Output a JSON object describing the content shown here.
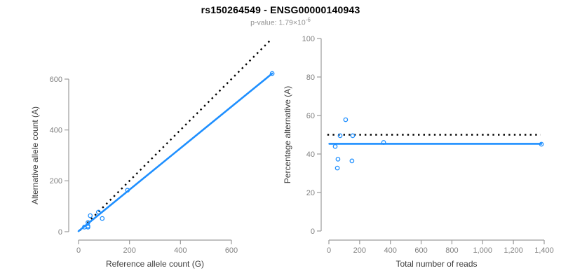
{
  "header": {
    "title": "rs150264549 - ENSG00000140943",
    "subtitle_prefix": "p-value: 1.79×10",
    "subtitle_exponent": "-6"
  },
  "colors": {
    "accent_blue": "#1E8FFF",
    "reference_line_black": "#000000",
    "axis_line_gray": "#9b9b9b",
    "tick_label_gray": "#808080",
    "axis_title_color": "#3d3d3d"
  },
  "chart_data": [
    {
      "id": "allele-count-scatter",
      "type": "scatter",
      "title": "",
      "xlabel": "Reference allele count (G)",
      "ylabel": "Alternative allele count (A)",
      "xlim": [
        0,
        770
      ],
      "ylim": [
        0,
        770
      ],
      "grid": false,
      "legend": null,
      "xticks": [
        0,
        200,
        400,
        600
      ],
      "xtick_labels": [
        "0",
        "200",
        "400",
        "600"
      ],
      "yticks": [
        0,
        200,
        400,
        600
      ],
      "ytick_labels": [
        "0",
        "200",
        "400",
        "600"
      ],
      "points": [
        [
          23,
          18
        ],
        [
          37,
          18
        ],
        [
          37,
          22
        ],
        [
          37,
          36
        ],
        [
          46,
          63
        ],
        [
          78,
          77
        ],
        [
          93,
          52
        ],
        [
          192,
          163
        ],
        [
          760,
          622
        ]
      ],
      "fit_line": {
        "x1": 0,
        "y1": 2,
        "x2": 760,
        "y2": 622
      },
      "dotted_reference_line": {
        "x1": 5,
        "y1": 5,
        "x2": 751,
        "y2": 751,
        "meaning": "identity y = x"
      }
    },
    {
      "id": "percentage-alternative-scatter",
      "type": "scatter",
      "title": "",
      "xlabel": "Total number of reads",
      "ylabel": "Percentage alternative (A)",
      "xlim": [
        0,
        1400
      ],
      "ylim": [
        0,
        100
      ],
      "grid": false,
      "legend": null,
      "xticks": [
        0,
        200,
        400,
        600,
        800,
        1000,
        1200,
        1400
      ],
      "xtick_labels": [
        "0",
        "200",
        "400",
        "600",
        "800",
        "1,000",
        "1,200",
        "1,400"
      ],
      "yticks": [
        0,
        20,
        40,
        60,
        80,
        100
      ],
      "ytick_labels": [
        "0",
        "20",
        "40",
        "60",
        "80",
        "100"
      ],
      "points": [
        [
          41,
          43.9
        ],
        [
          55,
          32.7
        ],
        [
          59,
          37.3
        ],
        [
          73,
          49.5
        ],
        [
          109,
          57.8
        ],
        [
          150,
          36.4
        ],
        [
          155,
          49.5
        ],
        [
          356,
          46.0
        ],
        [
          1382,
          45.1
        ]
      ],
      "fit_line": {
        "x1": 3,
        "y1": 45.3,
        "x2": 1382,
        "y2": 45.3
      },
      "dotted_reference_line": {
        "x1": -10,
        "y1": 50,
        "x2": 1377,
        "y2": 50,
        "meaning": "null expectation 50%"
      }
    }
  ]
}
